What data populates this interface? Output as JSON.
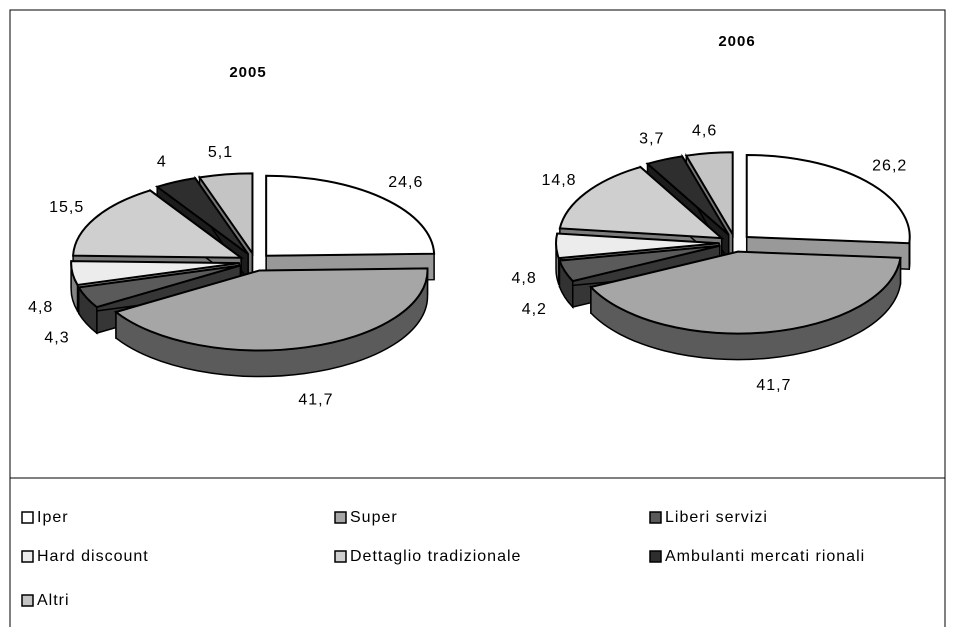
{
  "chart_data": [
    {
      "type": "pie",
      "title": "2005",
      "categories": [
        "Iper",
        "Super",
        "Liberi servizi",
        "Hard discount",
        "Dettaglio tradizionale",
        "Ambulanti mercati rionali",
        "Altri"
      ],
      "values": [
        24.6,
        41.7,
        4.3,
        4.8,
        15.5,
        4,
        5.1
      ],
      "value_labels": [
        "24,6",
        "41,7",
        "4,3",
        "4,8",
        "15,5",
        "4",
        "5,1"
      ],
      "colors": [
        "#ffffff",
        "#a6a6a6",
        "#5a5a5a",
        "#ececec",
        "#cfcfcf",
        "#2e2e2e",
        "#c4c4c4"
      ]
    },
    {
      "type": "pie",
      "title": "2006",
      "categories": [
        "Iper",
        "Super",
        "Liberi servizi",
        "Hard discount",
        "Dettaglio tradizionale",
        "Ambulanti mercati rionali",
        "Altri"
      ],
      "values": [
        26.2,
        41.7,
        4.2,
        4.8,
        14.8,
        3.7,
        4.6
      ],
      "value_labels": [
        "26,2",
        "41,7",
        "4,2",
        "4,8",
        "14,8",
        "3,7",
        "4,6"
      ],
      "colors": [
        "#ffffff",
        "#a6a6a6",
        "#5a5a5a",
        "#ececec",
        "#cfcfcf",
        "#2e2e2e",
        "#c4c4c4"
      ]
    }
  ]
}
